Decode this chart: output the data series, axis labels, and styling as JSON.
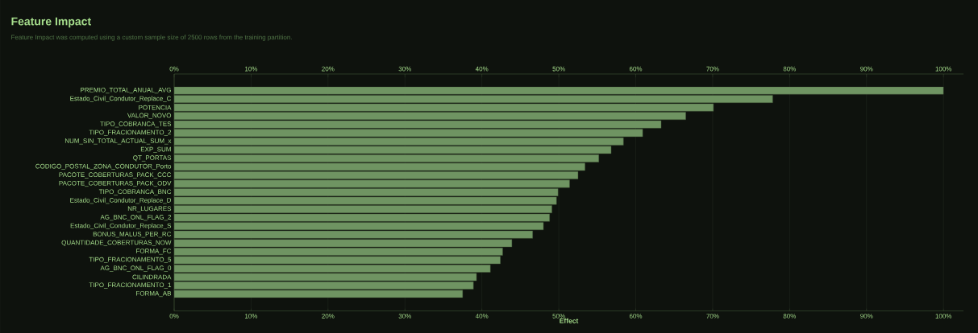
{
  "chart_data": {
    "type": "bar",
    "orientation": "horizontal",
    "title": "Feature Impact",
    "subtitle": "Feature Impact was computed using a custom sample size of 2500 rows from the training partition.",
    "xlabel": "Effect",
    "categories": [
      "PREMIO_TOTAL_ANUAL_AVG",
      "Estado_Civil_Condutor_Replace_C",
      "POTENCIA",
      "VALOR_NOVO",
      "TIPO_COBRANCA_TES",
      "TIPO_FRACIONAMENTO_2",
      "NUM_SIN_TOTAL_ACTUAL_SUM_x",
      "EXP_SUM",
      "QT_PORTAS",
      "CODIGO_POSTAL_ZONA_CONDUTOR_Porto",
      "PACOTE_COBERTURAS_PACK_CCC",
      "PACOTE_COBERTURAS_PACK_ODV",
      "TIPO_COBRANCA_BNC",
      "Estado_Civil_Condutor_Replace_D",
      "NR_LUGARES",
      "AG_BNC_ONL_FLAG_2",
      "Estado_Civil_Condutor_Replace_S",
      "BONUS_MALUS_PER_RC",
      "QUANTIDADE_COBERTURAS_NOW",
      "FORMA_FC",
      "TIPO_FRACIONAMENTO_5",
      "AG_BNC_ONL_FLAG_0",
      "CILINDRADA",
      "TIPO_FRACIONAMENTO_1",
      "FORMA_AB"
    ],
    "values": [
      100,
      77.8,
      70.1,
      66.5,
      63.3,
      60.9,
      58.4,
      56.8,
      55.2,
      53.4,
      52.5,
      51.4,
      49.9,
      49.7,
      49.1,
      48.8,
      48.0,
      46.6,
      43.9,
      42.7,
      42.4,
      41.1,
      39.3,
      38.9,
      37.5
    ],
    "color": "#6f9462",
    "grid": "x",
    "xlim": [
      0,
      102.6
    ],
    "xticks": [
      {
        "value": 0,
        "label": "0%"
      },
      {
        "value": 10,
        "label": "10%"
      },
      {
        "value": 20,
        "label": "20%"
      },
      {
        "value": 30,
        "label": "30%"
      },
      {
        "value": 40,
        "label": "40%"
      },
      {
        "value": 50,
        "label": "50%"
      },
      {
        "value": 60,
        "label": "60%"
      },
      {
        "value": 70,
        "label": "70%"
      },
      {
        "value": 80,
        "label": "80%"
      },
      {
        "value": 90,
        "label": "90%"
      },
      {
        "value": 100,
        "label": "100%"
      }
    ],
    "x2lim": [
      0,
      102.6
    ],
    "x2ticks": [
      {
        "value": 0,
        "label": "0%"
      },
      {
        "value": 10,
        "label": "10%"
      },
      {
        "value": 20,
        "label": "20%"
      },
      {
        "value": 30,
        "label": "30%"
      },
      {
        "value": 40,
        "label": "40%"
      },
      {
        "value": 50,
        "label": "50%"
      },
      {
        "value": 60,
        "label": "60%"
      },
      {
        "value": 70,
        "label": "70%"
      },
      {
        "value": 80,
        "label": "80%"
      },
      {
        "value": 90,
        "label": "90%"
      },
      {
        "value": 100,
        "label": "100%"
      }
    ]
  }
}
